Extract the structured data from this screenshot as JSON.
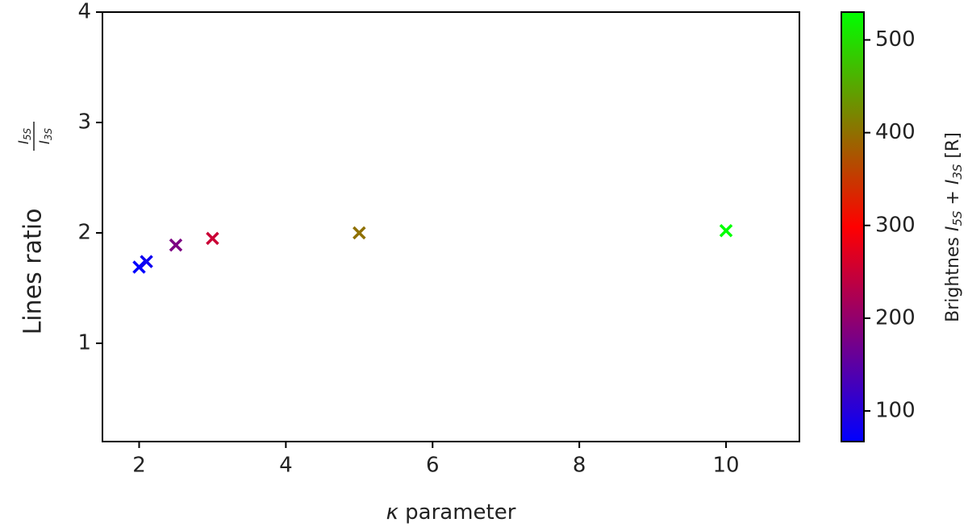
{
  "chart_data": {
    "type": "scatter",
    "xlabel_symbol": "κ",
    "xlabel": "parameter",
    "ylabel": "Lines ratio",
    "ylabel_numerator": {
      "symbol": "I",
      "sub": "5S"
    },
    "ylabel_denominator": {
      "symbol": "I",
      "sub": "3S"
    },
    "colorbar_label": [
      "Brightnes ",
      "I",
      "5S",
      " + ",
      "I",
      "3S",
      " [R]"
    ],
    "x": [
      2,
      2.1,
      2.5,
      3,
      5,
      10
    ],
    "values": [
      1.69,
      1.74,
      1.89,
      1.95,
      2.0,
      2.02
    ],
    "brightness": [
      67,
      80,
      180,
      250,
      400,
      530
    ],
    "colormap": [
      "#0000ff",
      "#ff0000",
      "#00ff00"
    ],
    "xlim": [
      1.5,
      11
    ],
    "xticks": [
      2,
      4,
      6,
      8,
      10
    ],
    "ylim": [
      0.11,
      4
    ],
    "yticks": [
      1,
      2,
      3,
      4
    ],
    "clim": [
      67,
      530
    ],
    "cticks": [
      100,
      200,
      300,
      400,
      500
    ]
  }
}
